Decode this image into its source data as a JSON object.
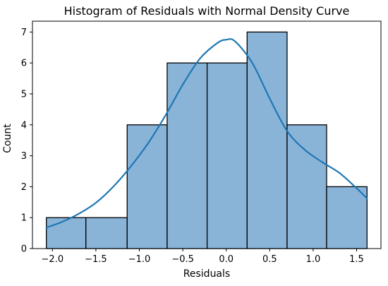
{
  "chart_data": {
    "type": "bar",
    "title": "Histogram of Residuals with Normal Density Curve",
    "xlabel": "Residuals",
    "ylabel": "Count",
    "xlim": [
      -2.23,
      1.78
    ],
    "ylim": [
      0,
      7.35
    ],
    "x_ticks": [
      -2.0,
      -1.5,
      -1.0,
      -0.5,
      0.0,
      0.5,
      1.0,
      1.5
    ],
    "x_tick_labels": [
      "−2.0",
      "−1.5",
      "−1.0",
      "−0.5",
      "0.0",
      "0.5",
      "1.0",
      "1.5"
    ],
    "y_ticks": [
      0,
      1,
      2,
      3,
      4,
      5,
      6,
      7
    ],
    "y_tick_labels": [
      "0",
      "1",
      "2",
      "3",
      "4",
      "5",
      "6",
      "7"
    ],
    "bins": [
      {
        "x0": -2.07,
        "x1": -1.615,
        "count": 1
      },
      {
        "x0": -1.615,
        "x1": -1.14,
        "count": 1
      },
      {
        "x0": -1.14,
        "x1": -0.68,
        "count": 4
      },
      {
        "x0": -0.68,
        "x1": -0.22,
        "count": 6
      },
      {
        "x0": -0.22,
        "x1": 0.24,
        "count": 6
      },
      {
        "x0": 0.24,
        "x1": 0.7,
        "count": 7
      },
      {
        "x0": 0.7,
        "x1": 1.155,
        "count": 4
      },
      {
        "x0": 1.155,
        "x1": 1.62,
        "count": 2
      }
    ],
    "density_curve": {
      "x": [
        -2.07,
        -1.9,
        -1.7,
        -1.5,
        -1.3,
        -1.1,
        -0.9,
        -0.7,
        -0.5,
        -0.3,
        -0.1,
        0.0,
        0.1,
        0.3,
        0.5,
        0.7,
        0.9,
        1.1,
        1.3,
        1.5,
        1.62
      ],
      "y": [
        0.68,
        0.85,
        1.12,
        1.48,
        2.0,
        2.65,
        3.4,
        4.3,
        5.3,
        6.15,
        6.65,
        6.75,
        6.7,
        6.0,
        4.85,
        3.8,
        3.2,
        2.8,
        2.45,
        1.95,
        1.62
      ]
    },
    "colors": {
      "bar_fill": "#89b4d8",
      "bar_edge": "#000000",
      "curve": "#1f77b4"
    },
    "grid": false,
    "legend": "none"
  }
}
